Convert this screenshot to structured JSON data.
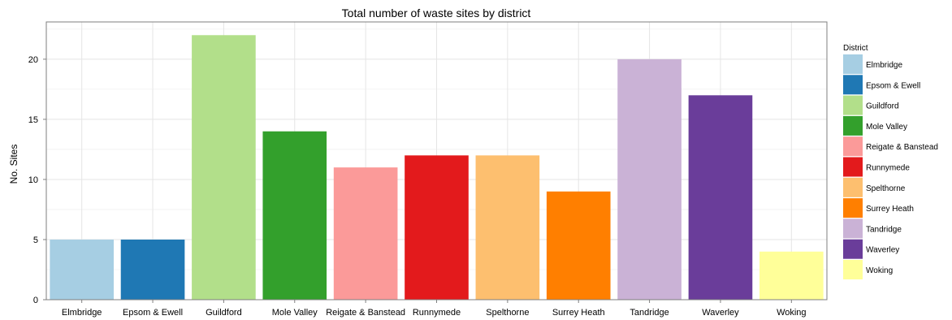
{
  "chart_data": {
    "type": "bar",
    "title": "Total number of waste sites by district",
    "xlabel": "",
    "ylabel": "No. Sites",
    "ylim": [
      0,
      23.1
    ],
    "yticks": [
      0,
      5,
      10,
      15,
      20
    ],
    "grid": true,
    "legend": {
      "title": "District",
      "position": "right"
    },
    "categories": [
      "Elmbridge",
      "Epsom & Ewell",
      "Guildford",
      "Mole Valley",
      "Reigate & Banstead",
      "Runnymede",
      "Spelthorne",
      "Surrey Heath",
      "Tandridge",
      "Waverley",
      "Woking"
    ],
    "values": [
      5,
      5,
      22,
      14,
      11,
      12,
      12,
      9,
      20,
      17,
      4
    ],
    "colors": [
      "#a6cee3",
      "#1f78b4",
      "#b2df8a",
      "#33a02c",
      "#fb9a99",
      "#e31a1c",
      "#fdbf6f",
      "#ff7f00",
      "#cab2d6",
      "#6a3d9a",
      "#ffff99"
    ]
  }
}
